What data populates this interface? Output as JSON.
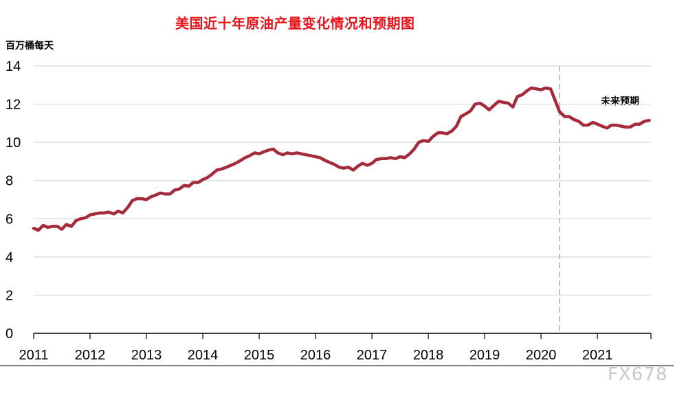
{
  "chart_data": {
    "type": "line",
    "title": "美国近十年原油产量变化情况和预期图",
    "ylabel": "百万桶每天",
    "annotation": "未来预期",
    "watermark": "FX678",
    "ylim": [
      0,
      14
    ],
    "yticks": [
      0,
      2,
      4,
      6,
      8,
      10,
      12,
      14
    ],
    "xlim": [
      2011.0,
      2021.95
    ],
    "xticks": [
      "2011",
      "2012",
      "2013",
      "2014",
      "2015",
      "2016",
      "2017",
      "2018",
      "2019",
      "2020",
      "2021"
    ],
    "forecast_start": 2020.33,
    "line_color": "#a52a3c",
    "title_color": "#e8141b",
    "grid": true,
    "series": [
      {
        "x": [
          2011.0,
          2011.08,
          2011.17,
          2011.25,
          2011.33,
          2011.42,
          2011.5,
          2011.58,
          2011.67,
          2011.75,
          2011.83,
          2011.92,
          2012.0,
          2012.08,
          2012.17,
          2012.25,
          2012.33,
          2012.42,
          2012.5,
          2012.58,
          2012.67,
          2012.75,
          2012.83,
          2012.92,
          2013.0,
          2013.08,
          2013.17,
          2013.25,
          2013.33,
          2013.42,
          2013.5,
          2013.58,
          2013.67,
          2013.75,
          2013.83,
          2013.92,
          2014.0,
          2014.08,
          2014.17,
          2014.25,
          2014.33,
          2014.42,
          2014.5,
          2014.58,
          2014.67,
          2014.75,
          2014.83,
          2014.92,
          2015.0,
          2015.08,
          2015.17,
          2015.25,
          2015.33,
          2015.42,
          2015.5,
          2015.58,
          2015.67,
          2015.75,
          2015.83,
          2015.92,
          2016.0,
          2016.08,
          2016.17,
          2016.25,
          2016.33,
          2016.42,
          2016.5,
          2016.58,
          2016.67,
          2016.75,
          2016.83,
          2016.92,
          2017.0,
          2017.08,
          2017.17,
          2017.25,
          2017.33,
          2017.42,
          2017.5,
          2017.58,
          2017.67,
          2017.75,
          2017.83,
          2017.92,
          2018.0,
          2018.08,
          2018.17,
          2018.25,
          2018.33,
          2018.42,
          2018.5,
          2018.58,
          2018.67,
          2018.75,
          2018.83,
          2018.92,
          2019.0,
          2019.08,
          2019.17,
          2019.25,
          2019.33,
          2019.42,
          2019.5,
          2019.58,
          2019.67,
          2019.75,
          2019.83,
          2019.92,
          2020.0,
          2020.08,
          2020.17,
          2020.25,
          2020.33,
          2020.42,
          2020.5,
          2020.58,
          2020.67,
          2020.75,
          2020.83,
          2020.92,
          2021.0,
          2021.08,
          2021.17,
          2021.25,
          2021.33,
          2021.42,
          2021.5,
          2021.58,
          2021.67,
          2021.75,
          2021.83,
          2021.92
        ],
        "values": [
          5.5,
          5.4,
          5.65,
          5.55,
          5.6,
          5.6,
          5.45,
          5.7,
          5.6,
          5.9,
          6.0,
          6.05,
          6.2,
          6.25,
          6.3,
          6.3,
          6.35,
          6.25,
          6.4,
          6.3,
          6.6,
          6.95,
          7.05,
          7.05,
          7.0,
          7.15,
          7.25,
          7.35,
          7.3,
          7.3,
          7.5,
          7.55,
          7.75,
          7.7,
          7.9,
          7.9,
          8.05,
          8.15,
          8.35,
          8.55,
          8.6,
          8.7,
          8.8,
          8.9,
          9.05,
          9.2,
          9.3,
          9.45,
          9.4,
          9.5,
          9.6,
          9.65,
          9.45,
          9.35,
          9.45,
          9.4,
          9.45,
          9.4,
          9.35,
          9.3,
          9.25,
          9.2,
          9.05,
          8.95,
          8.85,
          8.7,
          8.65,
          8.7,
          8.55,
          8.75,
          8.9,
          8.8,
          8.9,
          9.1,
          9.15,
          9.15,
          9.2,
          9.15,
          9.25,
          9.2,
          9.4,
          9.65,
          10.0,
          10.1,
          10.05,
          10.3,
          10.5,
          10.5,
          10.45,
          10.6,
          10.85,
          11.35,
          11.5,
          11.65,
          12.0,
          12.05,
          11.9,
          11.7,
          11.95,
          12.15,
          12.1,
          12.05,
          11.85,
          12.4,
          12.5,
          12.7,
          12.85,
          12.8,
          12.75,
          12.85,
          12.8,
          12.2,
          11.6,
          11.35,
          11.35,
          11.2,
          11.1,
          10.9,
          10.9,
          11.05,
          10.95,
          10.85,
          10.75,
          10.9,
          10.9,
          10.85,
          10.8,
          10.8,
          10.95,
          10.95,
          11.1,
          11.15
        ]
      }
    ]
  }
}
